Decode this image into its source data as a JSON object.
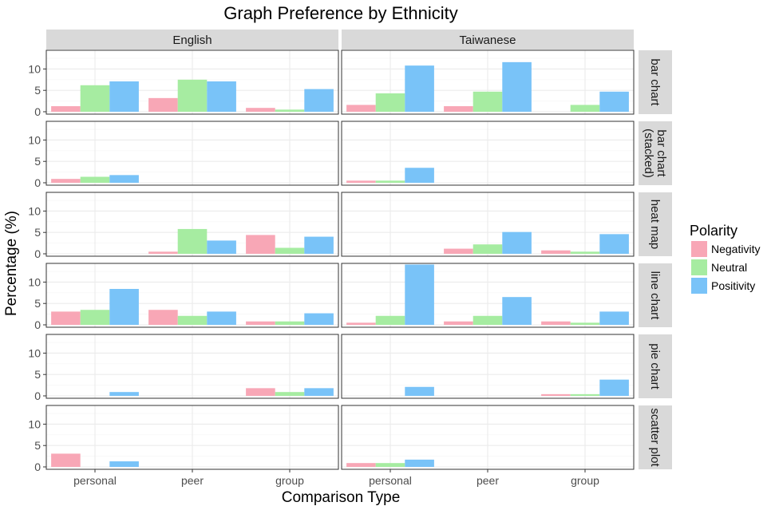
{
  "chart_data": {
    "type": "bar",
    "title": "Graph Preference by Ethnicity",
    "xlabel": "Comparison Type",
    "ylabel": "Percentage (%)",
    "ylim": [
      0,
      14
    ],
    "yticks": [
      0,
      5,
      10
    ],
    "categories": [
      "personal",
      "peer",
      "group"
    ],
    "facet_columns": [
      "English",
      "Taiwanese"
    ],
    "facet_rows": [
      "bar chart",
      "bar chart\n(stacked)",
      "heat map",
      "line chart",
      "pie chart",
      "scatter plot"
    ],
    "legend": {
      "title": "Polarity",
      "position": "right",
      "entries": [
        "Negativity",
        "Neutral",
        "Positivity"
      ]
    },
    "colors": {
      "Negativity": "#f8a7b6",
      "Neutral": "#a6eca1",
      "Positivity": "#79c3f8",
      "strip": "#d9d9d9",
      "grid": "#ebebeb",
      "panel_border": "#333333"
    },
    "grid": true,
    "panels": [
      {
        "row": "bar chart",
        "col": "English",
        "values": {
          "Negativity": [
            1.3,
            3.2,
            0.9
          ],
          "Neutral": [
            6.2,
            7.5,
            0.5
          ],
          "Positivity": [
            7.1,
            7.1,
            5.3
          ]
        }
      },
      {
        "row": "bar chart",
        "col": "Taiwanese",
        "values": {
          "Negativity": [
            1.6,
            1.3,
            0
          ],
          "Neutral": [
            4.3,
            4.7,
            1.6
          ],
          "Positivity": [
            10.8,
            11.6,
            4.7
          ]
        }
      },
      {
        "row": "bar chart\n(stacked)",
        "col": "English",
        "values": {
          "Negativity": [
            0.9,
            0,
            0
          ],
          "Neutral": [
            1.4,
            0,
            0
          ],
          "Positivity": [
            1.8,
            0,
            0
          ]
        }
      },
      {
        "row": "bar chart\n(stacked)",
        "col": "Taiwanese",
        "values": {
          "Negativity": [
            0.5,
            0,
            0
          ],
          "Neutral": [
            0.5,
            0,
            0
          ],
          "Positivity": [
            3.5,
            0,
            0
          ]
        }
      },
      {
        "row": "heat map",
        "col": "English",
        "values": {
          "Negativity": [
            0,
            0.5,
            4.4
          ],
          "Neutral": [
            0,
            5.8,
            1.4
          ],
          "Positivity": [
            0,
            3.1,
            4.0
          ]
        }
      },
      {
        "row": "heat map",
        "col": "Taiwanese",
        "values": {
          "Negativity": [
            0,
            1.2,
            0.8
          ],
          "Neutral": [
            0,
            2.2,
            0.5
          ],
          "Positivity": [
            0,
            5.1,
            4.6
          ]
        }
      },
      {
        "row": "line chart",
        "col": "English",
        "values": {
          "Negativity": [
            3.1,
            3.5,
            0.8
          ],
          "Neutral": [
            3.5,
            2.1,
            0.8
          ],
          "Positivity": [
            8.4,
            3.1,
            2.7
          ]
        }
      },
      {
        "row": "line chart",
        "col": "Taiwanese",
        "values": {
          "Negativity": [
            0.5,
            0.8,
            0.8
          ],
          "Neutral": [
            2.1,
            2.1,
            0.5
          ],
          "Positivity": [
            14.1,
            6.5,
            3.1
          ]
        }
      },
      {
        "row": "pie chart",
        "col": "English",
        "values": {
          "Negativity": [
            0,
            0,
            1.8
          ],
          "Neutral": [
            0,
            0,
            0.9
          ],
          "Positivity": [
            0.9,
            0,
            1.8
          ]
        }
      },
      {
        "row": "pie chart",
        "col": "Taiwanese",
        "values": {
          "Negativity": [
            0,
            0,
            0.4
          ],
          "Neutral": [
            0,
            0,
            0.4
          ],
          "Positivity": [
            2.1,
            0,
            3.8
          ]
        }
      },
      {
        "row": "scatter plot",
        "col": "English",
        "values": {
          "Negativity": [
            3.1,
            0,
            0
          ],
          "Neutral": [
            0,
            0,
            0
          ],
          "Positivity": [
            1.3,
            0,
            0
          ]
        }
      },
      {
        "row": "scatter plot",
        "col": "Taiwanese",
        "values": {
          "Negativity": [
            0.9,
            0,
            0
          ],
          "Neutral": [
            0.9,
            0,
            0
          ],
          "Positivity": [
            1.7,
            0,
            0
          ]
        }
      }
    ]
  }
}
